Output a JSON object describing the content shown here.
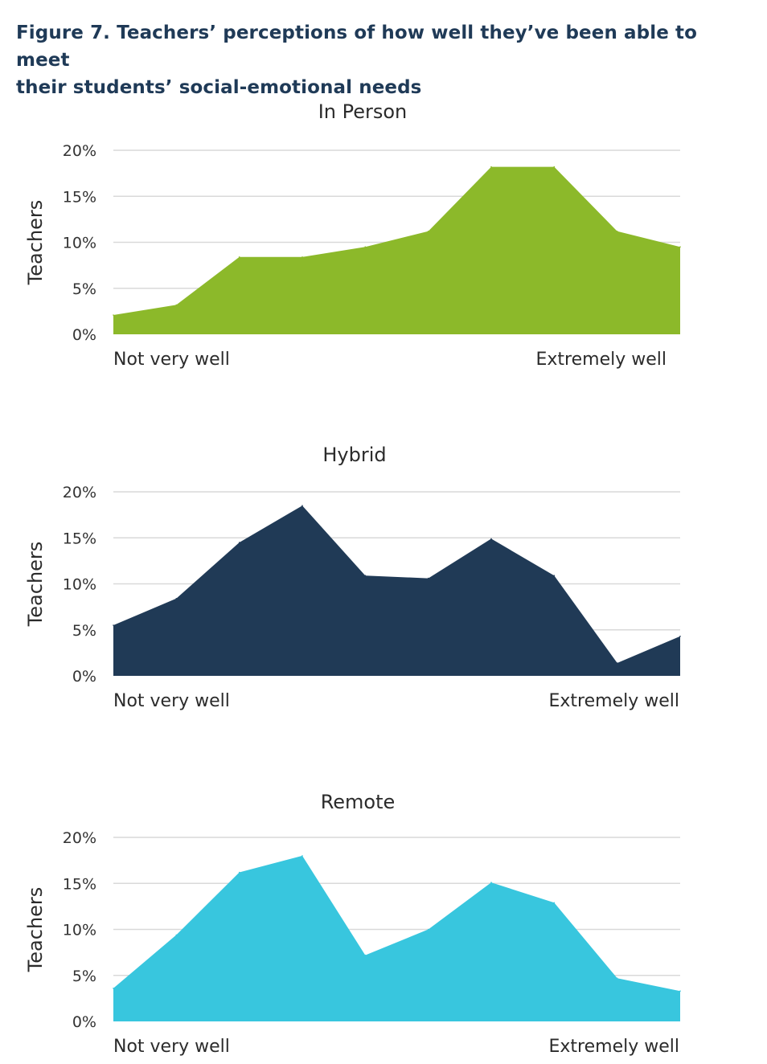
{
  "figure": {
    "title_line1": "Figure 7. Teachers’ perceptions of how well they’ve been able to meet",
    "title_line2": "their students’ social-emotional needs"
  },
  "chart_data": [
    {
      "type": "area",
      "title": "In Person",
      "ylabel": "Teachers",
      "xlabel": "",
      "x_end_labels": [
        "Not very well",
        "Extremely well"
      ],
      "ylim": [
        0,
        20
      ],
      "yticks": [
        "0%",
        "5%",
        "10%",
        "15%",
        "20%"
      ],
      "grid": true,
      "color": "#8cb92a",
      "values": [
        2.1,
        3.2,
        8.4,
        8.4,
        9.5,
        11.2,
        18.2,
        18.2,
        11.2,
        9.5
      ]
    },
    {
      "type": "area",
      "title": "Hybrid",
      "ylabel": "Teachers",
      "xlabel": "",
      "x_end_labels": [
        "Not very well",
        "Extremely well"
      ],
      "ylim": [
        0,
        20
      ],
      "yticks": [
        "0%",
        "5%",
        "10%",
        "15%",
        "20%"
      ],
      "grid": true,
      "color": "#203a56",
      "values": [
        5.5,
        8.4,
        14.5,
        18.5,
        10.9,
        10.6,
        14.9,
        10.9,
        1.4,
        4.3
      ]
    },
    {
      "type": "area",
      "title": "Remote",
      "ylabel": "Teachers",
      "xlabel": "",
      "x_end_labels": [
        "Not very well",
        "Extremely well"
      ],
      "ylim": [
        0,
        20
      ],
      "yticks": [
        "0%",
        "5%",
        "10%",
        "15%",
        "20%"
      ],
      "grid": true,
      "color": "#38c6de",
      "values": [
        3.6,
        9.4,
        16.2,
        18.0,
        7.2,
        10.0,
        15.1,
        12.9,
        4.7,
        3.3
      ]
    }
  ]
}
